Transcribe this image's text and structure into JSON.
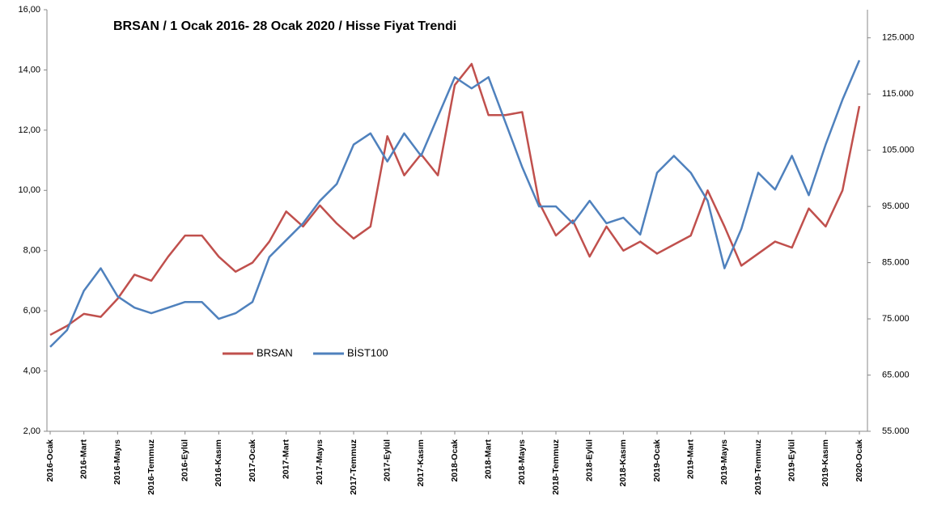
{
  "chart_data": {
    "type": "line",
    "title": "BRSAN / 1 Ocak 2016-  28 Ocak 2020 / Hisse Fiyat Trendi",
    "categories": [
      "2016-Ocak",
      null,
      "2016-Mart",
      null,
      "2016-Mayıs",
      null,
      "2016-Temmuz",
      null,
      "2016-Eylül",
      null,
      "2016-Kasım",
      null,
      "2017-Ocak",
      null,
      "2017-Mart",
      null,
      "2017-Mayıs",
      null,
      "2017-Temmuz",
      null,
      "2017-Eylül",
      null,
      "2017-Kasım",
      null,
      "2018-Ocak",
      null,
      "2018-Mart",
      null,
      "2018-Mayıs",
      null,
      "2018-Temmuz",
      null,
      "2018-Eylül",
      null,
      "2018-Kasım",
      null,
      "2019-Ocak",
      null,
      "2019-Mart",
      null,
      "2019-Mayıs",
      null,
      "2019-Temmuz",
      null,
      "2019-Eylül",
      null,
      "2019-Kasım",
      null,
      "2020-Ocak"
    ],
    "series": [
      {
        "name": "BRSAN",
        "color": "#c0504d",
        "axis": "y",
        "values": [
          5.2,
          5.5,
          5.9,
          5.8,
          6.4,
          7.2,
          7.0,
          7.8,
          8.5,
          8.5,
          7.8,
          7.3,
          7.6,
          8.3,
          9.3,
          8.8,
          9.5,
          8.9,
          8.4,
          8.8,
          11.8,
          10.5,
          11.2,
          10.5,
          13.5,
          14.2,
          12.5,
          12.5,
          12.6,
          9.6,
          8.5,
          9.0,
          7.8,
          8.8,
          8.0,
          8.3,
          7.9,
          8.2,
          8.5,
          10.0,
          8.8,
          7.5,
          7.9,
          8.3,
          8.1,
          9.4,
          8.8,
          10.0,
          12.8
        ]
      },
      {
        "name": "BİST100",
        "color": "#4f81bd",
        "axis": "y2",
        "values": [
          70000,
          73000,
          80000,
          84000,
          79000,
          77000,
          76000,
          77000,
          78000,
          78000,
          75000,
          76000,
          78000,
          86000,
          89000,
          92000,
          96000,
          99000,
          106000,
          108000,
          103000,
          108000,
          104000,
          111000,
          118000,
          116000,
          118000,
          110000,
          102000,
          95000,
          95000,
          92000,
          96000,
          92000,
          93000,
          90000,
          101000,
          104000,
          101000,
          96000,
          84000,
          91000,
          101000,
          98000,
          104000,
          97000,
          106000,
          114000,
          121000
        ]
      }
    ],
    "ylim": [
      2,
      16
    ],
    "yticks": [
      {
        "value": 2,
        "label": "2,00"
      },
      {
        "value": 4,
        "label": "4,00"
      },
      {
        "value": 6,
        "label": "6,00"
      },
      {
        "value": 8,
        "label": "8,00"
      },
      {
        "value": 10,
        "label": "10,00"
      },
      {
        "value": 12,
        "label": "12,00"
      },
      {
        "value": 14,
        "label": "14,00"
      },
      {
        "value": 16,
        "label": "16,00"
      }
    ],
    "y2lim": [
      55000,
      130000
    ],
    "y2ticks": [
      {
        "value": 55000,
        "label": "55.000"
      },
      {
        "value": 65000,
        "label": "65.000"
      },
      {
        "value": 75000,
        "label": "75.000"
      },
      {
        "value": 85000,
        "label": "85.000"
      },
      {
        "value": 95000,
        "label": "95.000"
      },
      {
        "value": 105000,
        "label": "105.000"
      },
      {
        "value": 115000,
        "label": "115.000"
      },
      {
        "value": 125000,
        "label": "125.000"
      }
    ],
    "grid": false
  }
}
